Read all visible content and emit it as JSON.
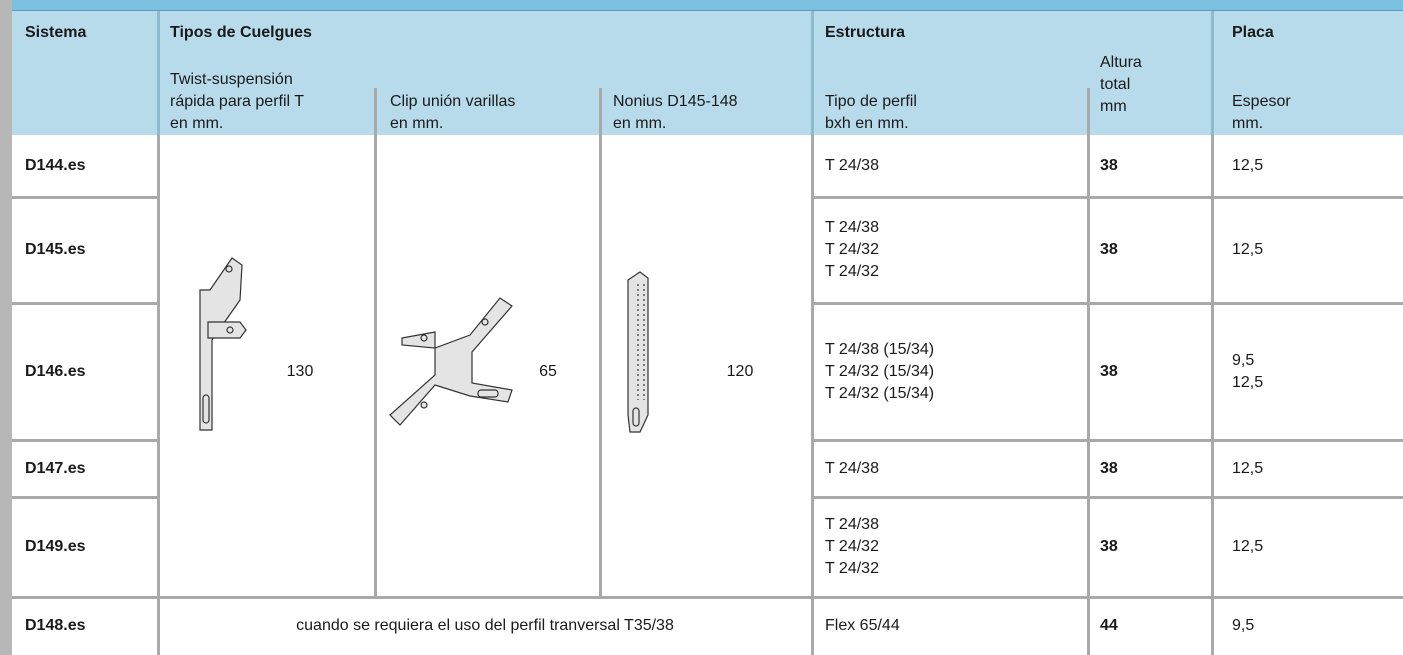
{
  "header": {
    "sistema": "Sistema",
    "tipos": "Tipos de Cuelgues",
    "hanger_headers": [
      [
        "Twist-suspensión",
        "rápida para perfil T",
        "en mm."
      ],
      [
        "Clip unión varillas",
        "en mm."
      ],
      [
        "Nonius D145-148",
        "en mm."
      ]
    ],
    "estructura": "Estructura",
    "tipo_perfil": [
      "Tipo de perfil",
      "bxh en mm."
    ],
    "altura": [
      "Altura",
      "total",
      "mm"
    ],
    "placa": "Placa",
    "espesor": [
      "Espesor",
      "mm."
    ]
  },
  "hangers": [
    130,
    65,
    120
  ],
  "rows": [
    {
      "sistema": "D144.es",
      "perfil": [
        "T 24/38"
      ],
      "altura": 38,
      "espesor": [
        "12,5"
      ]
    },
    {
      "sistema": "D145.es",
      "perfil": [
        "T 24/38",
        "T 24/32",
        "T 24/32"
      ],
      "altura": 38,
      "espesor": [
        "12,5"
      ]
    },
    {
      "sistema": "D146.es",
      "perfil": [
        "T 24/38 (15/34)",
        "T 24/32 (15/34)",
        "T 24/32 (15/34)"
      ],
      "altura": 38,
      "espesor": [
        "9,5",
        "12,5"
      ]
    },
    {
      "sistema": "D147.es",
      "perfil": [
        "T 24/38"
      ],
      "altura": 38,
      "espesor": [
        "12,5"
      ]
    },
    {
      "sistema": "D149.es",
      "perfil": [
        "T 24/38",
        "T 24/32",
        "T 24/32"
      ],
      "altura": 38,
      "espesor": [
        "12,5"
      ]
    },
    {
      "sistema": "D148.es",
      "note": "cuando se requiera el uso del perfil tranversal T35/38",
      "perfil": [
        "Flex 65/44"
      ],
      "altura": 44,
      "espesor": [
        "9,5"
      ]
    }
  ]
}
